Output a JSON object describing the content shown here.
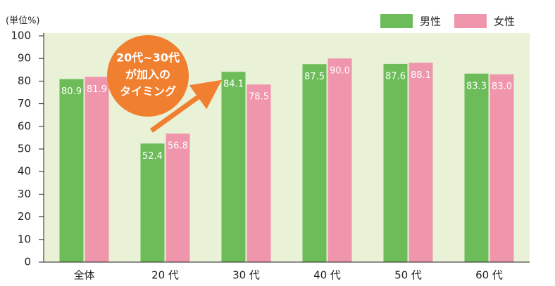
{
  "chart_data": {
    "type": "bar",
    "unit_label": "(単位%)",
    "categories": [
      "全体",
      "20 代",
      "30 代",
      "40 代",
      "50 代",
      "60 代"
    ],
    "series": [
      {
        "name": "男性",
        "color": "#6cbd5a",
        "values": [
          80.9,
          52.4,
          84.1,
          87.5,
          87.6,
          83.3
        ],
        "value_labels": [
          "80.9",
          "52.4",
          "84.1",
          "87.5",
          "87.6",
          "83.3"
        ]
      },
      {
        "name": "女性",
        "color": "#f096ac",
        "values": [
          81.9,
          56.8,
          78.5,
          90.0,
          88.1,
          83.0
        ],
        "value_labels": [
          "81.9",
          "56.8",
          "78.5",
          "90.0",
          "88.1",
          "83.0"
        ]
      }
    ],
    "ylim": [
      0,
      100
    ],
    "yticks": [
      0,
      10,
      20,
      30,
      40,
      50,
      60,
      70,
      80,
      90,
      100
    ],
    "background": "#e9f1d6",
    "legend": "top-right",
    "annotation": {
      "lines": [
        "20代~30代",
        "が加入の",
        "タイミング"
      ],
      "color": "#f08030"
    }
  }
}
